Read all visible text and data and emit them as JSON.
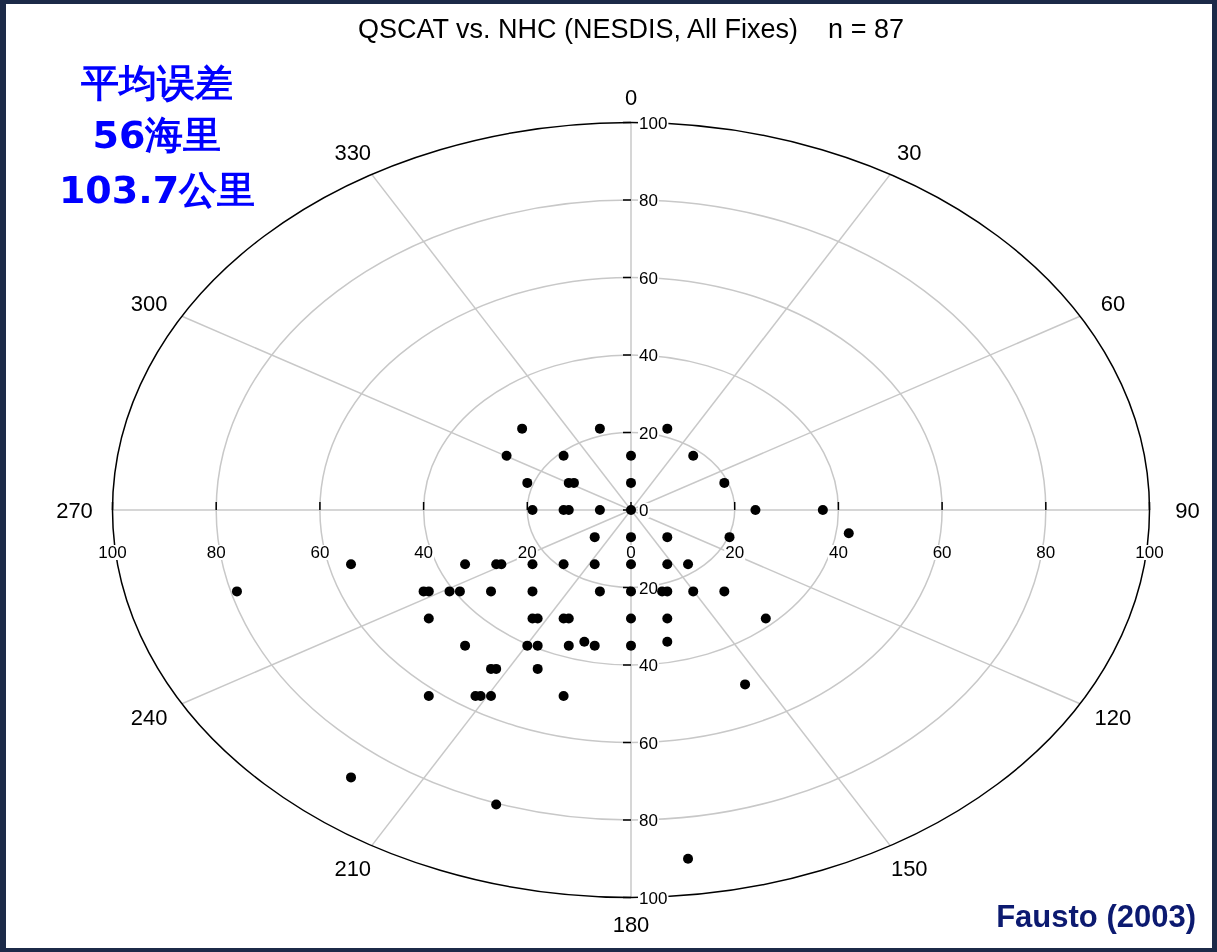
{
  "chart_data": {
    "type": "scatter",
    "title": "QSCAT vs. NHC (NESDIS, All Fixes)    n = 87",
    "annotations": [
      "平均误差",
      "56海里",
      "103.7公里",
      "Fausto (2003)",
      "0",
      "30",
      "60",
      "90",
      "120",
      "150",
      "180",
      "210",
      "240",
      "270",
      "300",
      "330"
    ],
    "series": [
      {
        "color": "#000000",
        "x": [
          -21,
          -6,
          7,
          -24,
          -13,
          0,
          12,
          -20,
          -12,
          -11,
          0,
          18,
          -19,
          -13,
          -12,
          -6,
          0,
          24,
          37,
          -7,
          0,
          7,
          19,
          42,
          -54,
          -32,
          -26,
          -25,
          -19,
          -13,
          -7,
          0,
          7,
          11,
          -76,
          -40,
          -39,
          -35,
          -33,
          -27,
          -19,
          -6,
          0,
          6,
          7,
          12,
          18,
          -39,
          -19,
          -18,
          -13,
          -12,
          0,
          7,
          26,
          -32,
          -20,
          -18,
          -12,
          -9,
          -7,
          0,
          7,
          -27,
          -26,
          -18,
          -39,
          -30,
          -29,
          -27,
          -13,
          22,
          -54,
          -26,
          11
        ],
        "values": [
          21,
          21,
          21,
          14,
          14,
          14,
          14,
          7,
          7,
          7,
          7,
          7,
          0,
          0,
          0,
          0,
          0,
          0,
          0,
          -7,
          -7,
          -7,
          -7,
          -6,
          -14,
          -14,
          -14,
          -14,
          -14,
          -14,
          -14,
          -14,
          -14,
          -14,
          -21,
          -21,
          -21,
          -21,
          -21,
          -21,
          -21,
          -21,
          -21,
          -21,
          -21,
          -21,
          -21,
          -28,
          -28,
          -28,
          -28,
          -28,
          -28,
          -28,
          -28,
          -35,
          -35,
          -35,
          -35,
          -34,
          -35,
          -35,
          -34,
          -41,
          -41,
          -41,
          -48,
          -48,
          -48,
          -48,
          -48,
          -45,
          -69,
          -76,
          -90
        ]
      }
    ],
    "marker": "circle",
    "xlim": [
      -100,
      100
    ],
    "ylim": [
      -100,
      100
    ],
    "xticks": [
      {
        "value": -100,
        "label": "100"
      },
      {
        "value": -80,
        "label": "80"
      },
      {
        "value": -60,
        "label": "60"
      },
      {
        "value": -40,
        "label": "40"
      },
      {
        "value": -20,
        "label": "20"
      },
      0,
      20,
      40,
      60,
      80,
      100
    ],
    "yticks": [
      {
        "value": -100,
        "label": "100"
      },
      {
        "value": -80,
        "label": "80"
      },
      {
        "value": -60,
        "label": "60"
      },
      {
        "value": -40,
        "label": "40"
      },
      {
        "value": -20,
        "label": "20"
      },
      0,
      20,
      40,
      60,
      80,
      100
    ]
  }
}
